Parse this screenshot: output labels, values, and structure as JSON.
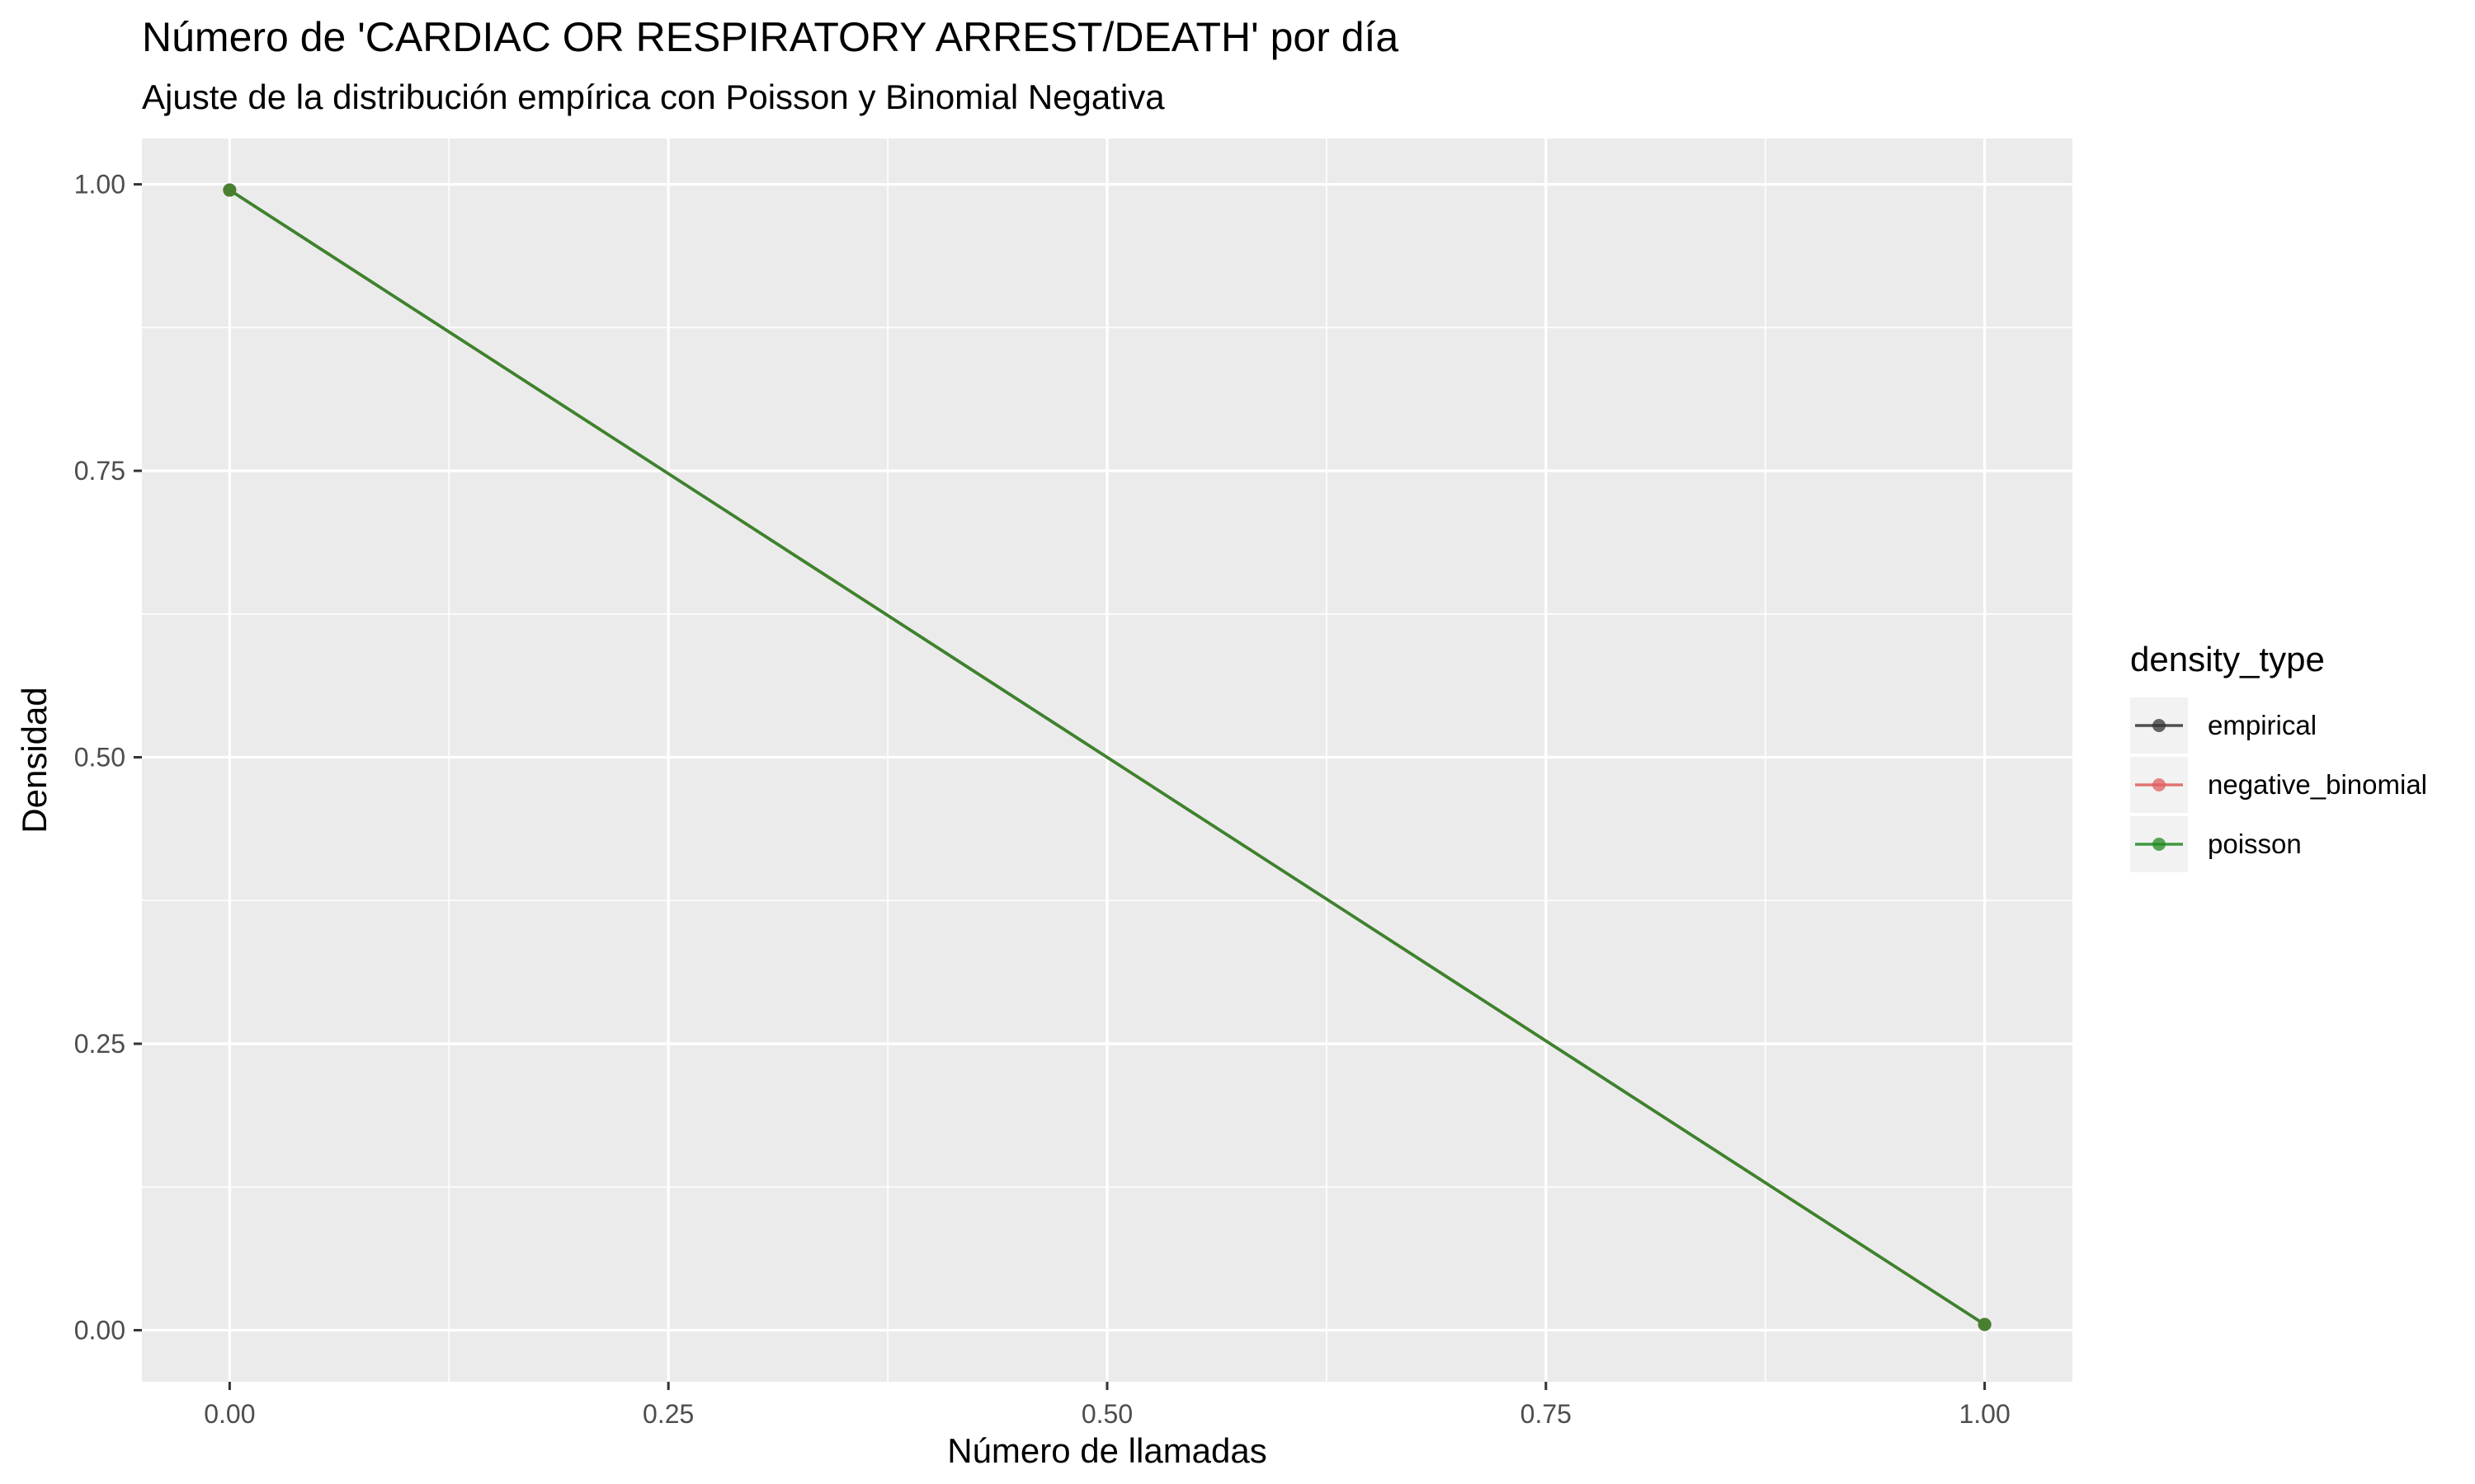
{
  "chart_data": {
    "type": "line",
    "title": "Número de 'CARDIAC OR RESPIRATORY ARREST/DEATH' por día",
    "subtitle": "Ajuste de la distribución empírica con Poisson y Binomial Negativa",
    "xlabel": "Número de llamadas",
    "ylabel": "Densidad",
    "xlim": [
      -0.05,
      1.05
    ],
    "ylim": [
      -0.045,
      1.04
    ],
    "x_ticks": [
      0.0,
      0.25,
      0.5,
      0.75,
      1.0
    ],
    "x_tick_labels": [
      "0.00",
      "0.25",
      "0.50",
      "0.75",
      "1.00"
    ],
    "y_ticks": [
      0.0,
      0.25,
      0.5,
      0.75,
      1.0
    ],
    "y_tick_labels": [
      "0.00",
      "0.25",
      "0.50",
      "0.75",
      "1.00"
    ],
    "grid": true,
    "legend_position": "right",
    "legend_title": "density_type",
    "series": [
      {
        "name": "empirical",
        "color": "#333333",
        "x": [
          0,
          1
        ],
        "y": [
          0.995,
          0.005
        ]
      },
      {
        "name": "negative_binomial",
        "color": "#E05F5F",
        "x": [
          0,
          1
        ],
        "y": [
          0.995,
          0.005
        ]
      },
      {
        "name": "poisson",
        "color": "#228B22",
        "x": [
          0,
          1
        ],
        "y": [
          0.995,
          0.005
        ]
      }
    ]
  }
}
